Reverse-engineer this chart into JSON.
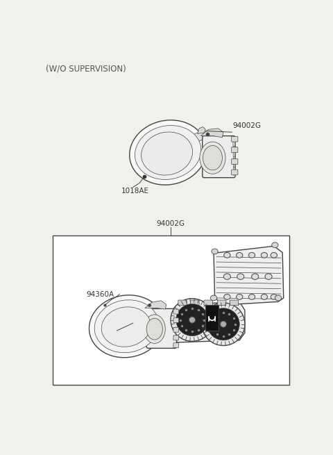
{
  "bg": "#f0f0ec",
  "white": "#ffffff",
  "lc": "#444444",
  "lc_thin": "#666666",
  "title": "(W/O SUPERVISION)",
  "label_top_part": "94002G",
  "label_screw": "1018AE",
  "label_box_header": "94002G",
  "label_bottom_part": "94360A",
  "fontsize_label": 7.5,
  "fontsize_title": 8.5
}
